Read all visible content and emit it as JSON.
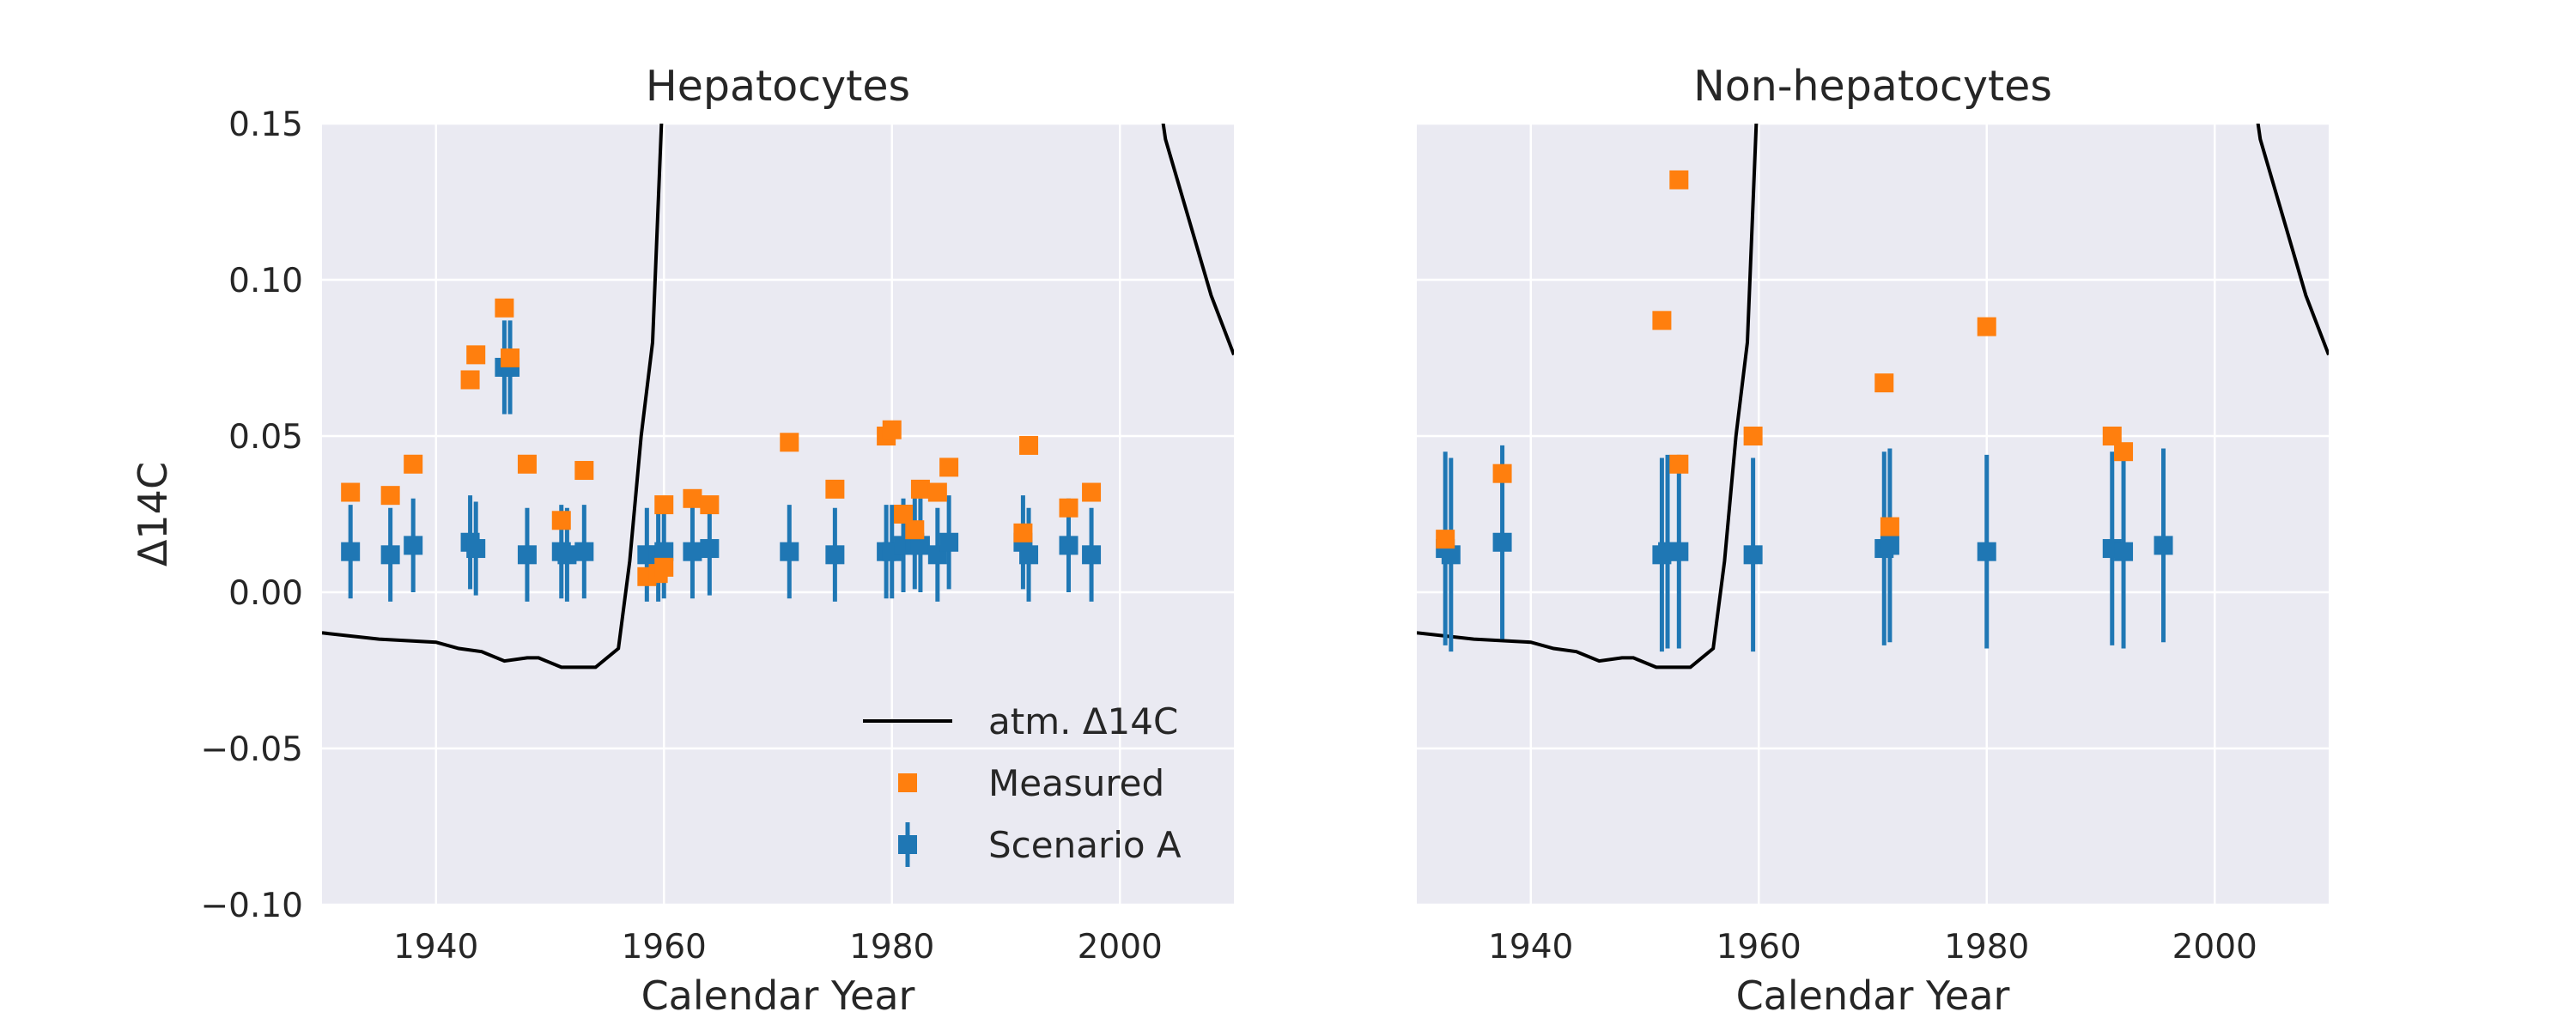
{
  "colors": {
    "background": "#EAEAF2",
    "grid": "#FFFFFF",
    "atm_line": "#000000",
    "measured": "#FF7F0E",
    "scenario": "#1F77B4",
    "text": "#262626"
  },
  "chart_data": [
    {
      "type": "scatter",
      "title": "Hepatocytes",
      "xlabel": "Calendar Year",
      "ylabel": "Δ14C",
      "xlim": [
        1930,
        2010
      ],
      "ylim": [
        -0.1,
        0.15
      ],
      "xticks": [
        1940,
        1960,
        1980,
        2000
      ],
      "xtick_labels": [
        "1940",
        "1960",
        "1980",
        "2000"
      ],
      "yticks": [
        -0.1,
        -0.05,
        0.0,
        0.05,
        0.1,
        0.15
      ],
      "ytick_labels": [
        "−0.10",
        "−0.05",
        "0.00",
        "0.05",
        "0.10",
        "0.15"
      ],
      "grid": true,
      "legend": {
        "placement": "lower-right",
        "entries": [
          {
            "label": "atm. Δ14C",
            "marker": "line"
          },
          {
            "label": "Measured",
            "marker": "square"
          },
          {
            "label": "Scenario A",
            "marker": "square-errorbar"
          }
        ]
      },
      "series": [
        {
          "name": "atm. Δ14C",
          "kind": "line",
          "x": [
            1930,
            1935,
            1940,
            1942,
            1944,
            1946,
            1948,
            1949,
            1951,
            1953,
            1954,
            1956,
            1957,
            1958,
            1959,
            1960,
            2003,
            2004,
            2006,
            2008,
            2010
          ],
          "y": [
            -0.013,
            -0.015,
            -0.016,
            -0.018,
            -0.019,
            -0.022,
            -0.021,
            -0.021,
            -0.024,
            -0.024,
            -0.024,
            -0.018,
            0.01,
            0.05,
            0.08,
            0.17,
            0.17,
            0.145,
            0.12,
            0.095,
            0.076
          ]
        },
        {
          "name": "Measured",
          "kind": "scatter",
          "x": [
            1932.5,
            1936,
            1938,
            1943,
            1943.5,
            1946,
            1946.5,
            1948,
            1951,
            1953,
            1958.5,
            1959.5,
            1960,
            1960,
            1962.5,
            1964,
            1971,
            1975,
            1979.5,
            1980,
            1981,
            1982,
            1982.5,
            1984,
            1985,
            1991.5,
            1992,
            1995.5,
            1997.5
          ],
          "y": [
            0.032,
            0.031,
            0.041,
            0.068,
            0.076,
            0.091,
            0.075,
            0.041,
            0.023,
            0.039,
            0.005,
            0.006,
            0.008,
            0.028,
            0.03,
            0.028,
            0.048,
            0.033,
            0.05,
            0.052,
            0.025,
            0.02,
            0.033,
            0.032,
            0.04,
            0.019,
            0.047,
            0.027,
            0.032
          ]
        },
        {
          "name": "Scenario A",
          "kind": "errorbar",
          "x": [
            1932.5,
            1936,
            1938,
            1943,
            1943.5,
            1946,
            1946.5,
            1948,
            1951,
            1951.5,
            1953,
            1958.5,
            1959.5,
            1960,
            1962.5,
            1964,
            1971,
            1975,
            1979.5,
            1980,
            1981,
            1982,
            1982.5,
            1984,
            1985,
            1991.5,
            1992,
            1995.5,
            1997.5
          ],
          "y": [
            0.013,
            0.012,
            0.015,
            0.016,
            0.014,
            0.072,
            0.072,
            0.012,
            0.013,
            0.012,
            0.013,
            0.012,
            0.012,
            0.013,
            0.013,
            0.014,
            0.013,
            0.012,
            0.013,
            0.013,
            0.015,
            0.016,
            0.015,
            0.012,
            0.016,
            0.016,
            0.012,
            0.015,
            0.012
          ],
          "err": [
            0.015,
            0.015,
            0.015,
            0.015,
            0.015,
            0.015,
            0.015,
            0.015,
            0.015,
            0.015,
            0.015,
            0.015,
            0.015,
            0.015,
            0.015,
            0.015,
            0.015,
            0.015,
            0.015,
            0.015,
            0.015,
            0.015,
            0.015,
            0.015,
            0.015,
            0.015,
            0.015,
            0.015,
            0.015
          ]
        }
      ]
    },
    {
      "type": "scatter",
      "title": "Non-hepatocytes",
      "xlabel": "Calendar Year",
      "ylabel": "",
      "xlim": [
        1930,
        2010
      ],
      "ylim": [
        -0.1,
        0.15
      ],
      "xticks": [
        1940,
        1960,
        1980,
        2000
      ],
      "xtick_labels": [
        "1940",
        "1960",
        "1980",
        "2000"
      ],
      "yticks": [
        -0.1,
        -0.05,
        0.0,
        0.05,
        0.1,
        0.15
      ],
      "ytick_labels": [],
      "grid": true,
      "legend": null,
      "series": [
        {
          "name": "atm. Δ14C",
          "kind": "line",
          "x": [
            1930,
            1935,
            1940,
            1942,
            1944,
            1946,
            1948,
            1949,
            1951,
            1953,
            1954,
            1956,
            1957,
            1958,
            1959,
            1960,
            2003,
            2004,
            2006,
            2008,
            2010
          ],
          "y": [
            -0.013,
            -0.015,
            -0.016,
            -0.018,
            -0.019,
            -0.022,
            -0.021,
            -0.021,
            -0.024,
            -0.024,
            -0.024,
            -0.018,
            0.01,
            0.05,
            0.08,
            0.17,
            0.17,
            0.145,
            0.12,
            0.095,
            0.076
          ]
        },
        {
          "name": "Measured",
          "kind": "scatter",
          "x": [
            1932.5,
            1937.5,
            1951.5,
            1953,
            1953,
            1959.5,
            1971,
            1971.5,
            1980,
            1991,
            1992
          ],
          "y": [
            0.017,
            0.038,
            0.087,
            0.041,
            0.132,
            0.05,
            0.067,
            0.021,
            0.085,
            0.05,
            0.045
          ],
          "_cont": true
        },
        {
          "name": "Scenario A",
          "kind": "errorbar",
          "x": [
            1932.5,
            1933,
            1937.5,
            1951.5,
            1952,
            1953,
            1959.5,
            1971,
            1971.5,
            1980,
            1991,
            1992,
            1995.5
          ],
          "y": [
            0.014,
            0.012,
            0.016,
            0.012,
            0.013,
            0.013,
            0.012,
            0.014,
            0.015,
            0.013,
            0.014,
            0.013,
            0.015
          ],
          "err": [
            0.031,
            0.031,
            0.031,
            0.031,
            0.031,
            0.031,
            0.031,
            0.031,
            0.031,
            0.031,
            0.031,
            0.031,
            0.031
          ]
        }
      ]
    }
  ]
}
